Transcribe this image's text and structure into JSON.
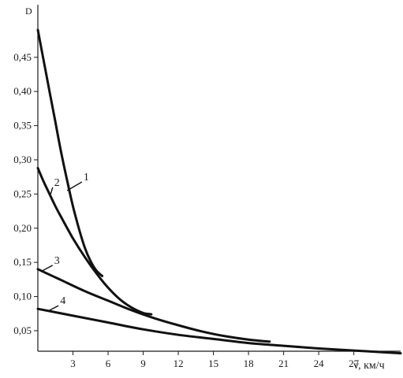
{
  "chart_data": {
    "type": "line",
    "title": "",
    "xlabel": "v, км/ч",
    "ylabel": "D",
    "xlim": [
      0,
      31
    ],
    "ylim": [
      0.015,
      0.5
    ],
    "grid": false,
    "x_ticks": [
      3,
      6,
      9,
      12,
      15,
      18,
      21,
      24,
      27
    ],
    "x_tick_labels": [
      "3",
      "6",
      "9",
      "12",
      "15",
      "18",
      "21",
      "24",
      "27"
    ],
    "y_ticks": [
      0.05,
      0.1,
      0.15,
      0.2,
      0.25,
      0.3,
      0.35,
      0.4,
      0.45
    ],
    "y_tick_labels": [
      "0,05",
      "0,10",
      "0,15",
      "0,20",
      "0,25",
      "0,30",
      "0,35",
      "0,40",
      "0,45"
    ],
    "series": [
      {
        "name": "1",
        "x": [
          0.0,
          0.5,
          1.0,
          1.5,
          2.0,
          2.5,
          3.0,
          3.5,
          4.0,
          4.5,
          5.0,
          5.5
        ],
        "y": [
          0.49,
          0.445,
          0.4,
          0.355,
          0.31,
          0.27,
          0.232,
          0.2,
          0.172,
          0.152,
          0.138,
          0.13
        ]
      },
      {
        "name": "2",
        "x": [
          0.0,
          0.5,
          1.0,
          1.5,
          2.0,
          3.0,
          4.0,
          5.0,
          6.0,
          7.0,
          8.0,
          9.0,
          9.7
        ],
        "y": [
          0.288,
          0.268,
          0.25,
          0.232,
          0.216,
          0.185,
          0.158,
          0.134,
          0.113,
          0.096,
          0.084,
          0.076,
          0.074
        ]
      },
      {
        "name": "3",
        "x": [
          0.0,
          2.0,
          4.0,
          6.0,
          8.0,
          10.0,
          12.0,
          14.0,
          16.0,
          18.0,
          19.8
        ],
        "y": [
          0.14,
          0.124,
          0.108,
          0.094,
          0.08,
          0.068,
          0.058,
          0.049,
          0.042,
          0.037,
          0.034
        ]
      },
      {
        "name": "4",
        "x": [
          0.0,
          3.0,
          6.0,
          9.0,
          12.0,
          15.0,
          18.0,
          21.0,
          24.0,
          27.0,
          30.0,
          31.0
        ],
        "y": [
          0.082,
          0.072,
          0.062,
          0.052,
          0.044,
          0.038,
          0.032,
          0.028,
          0.024,
          0.021,
          0.018,
          0.017
        ]
      }
    ],
    "annotations": [
      {
        "text": "1",
        "series": "1",
        "label_x": 3.9,
        "label_y": 0.27,
        "point_x": 2.5,
        "point_y": 0.255
      },
      {
        "text": "2",
        "series": "2",
        "label_x": 1.4,
        "label_y": 0.262,
        "point_x": 1.1,
        "point_y": 0.25
      },
      {
        "text": "3",
        "series": "3",
        "label_x": 1.4,
        "label_y": 0.148,
        "point_x": 0.3,
        "point_y": 0.137
      },
      {
        "text": "4",
        "series": "4",
        "label_x": 1.9,
        "label_y": 0.089,
        "point_x": 0.9,
        "point_y": 0.079
      }
    ],
    "legend": "none"
  }
}
